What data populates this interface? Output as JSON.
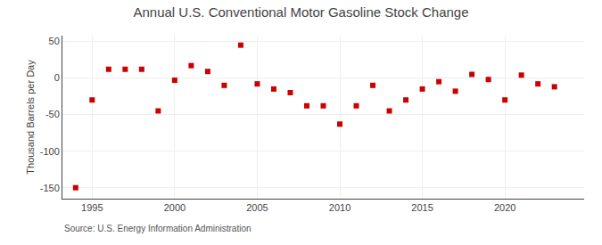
{
  "chart_data": {
    "type": "scatter",
    "title": "Annual U.S. Conventional Motor Gasoline Stock Change",
    "ylabel": "Thousand Barrels per Day",
    "annotations": [
      "Source: U.S. Energy Information Administration"
    ],
    "x": [
      1994,
      1995,
      1996,
      1997,
      1998,
      1999,
      2000,
      2001,
      2002,
      2003,
      2004,
      2005,
      2006,
      2007,
      2008,
      2009,
      2010,
      2011,
      2012,
      2013,
      2014,
      2015,
      2016,
      2017,
      2018,
      2019,
      2020,
      2021,
      2022,
      2023
    ],
    "values": [
      -150,
      -30,
      12,
      12,
      12,
      -45,
      -3,
      17,
      9,
      -10,
      45,
      -8,
      -15,
      -20,
      -38,
      -38,
      -63,
      -38,
      -10,
      -45,
      -30,
      -15,
      -5,
      -18,
      5,
      -2,
      -30,
      4,
      -8,
      -12
    ],
    "color": "#cc0000",
    "marker": "square",
    "xlim": [
      1993.2,
      2024.8
    ],
    "xticks": [
      1995,
      2000,
      2005,
      2010,
      2015,
      2020
    ],
    "ylim": [
      -165,
      58
    ],
    "yticks": [
      -150,
      -100,
      -50,
      0,
      50
    ],
    "grid": true
  }
}
